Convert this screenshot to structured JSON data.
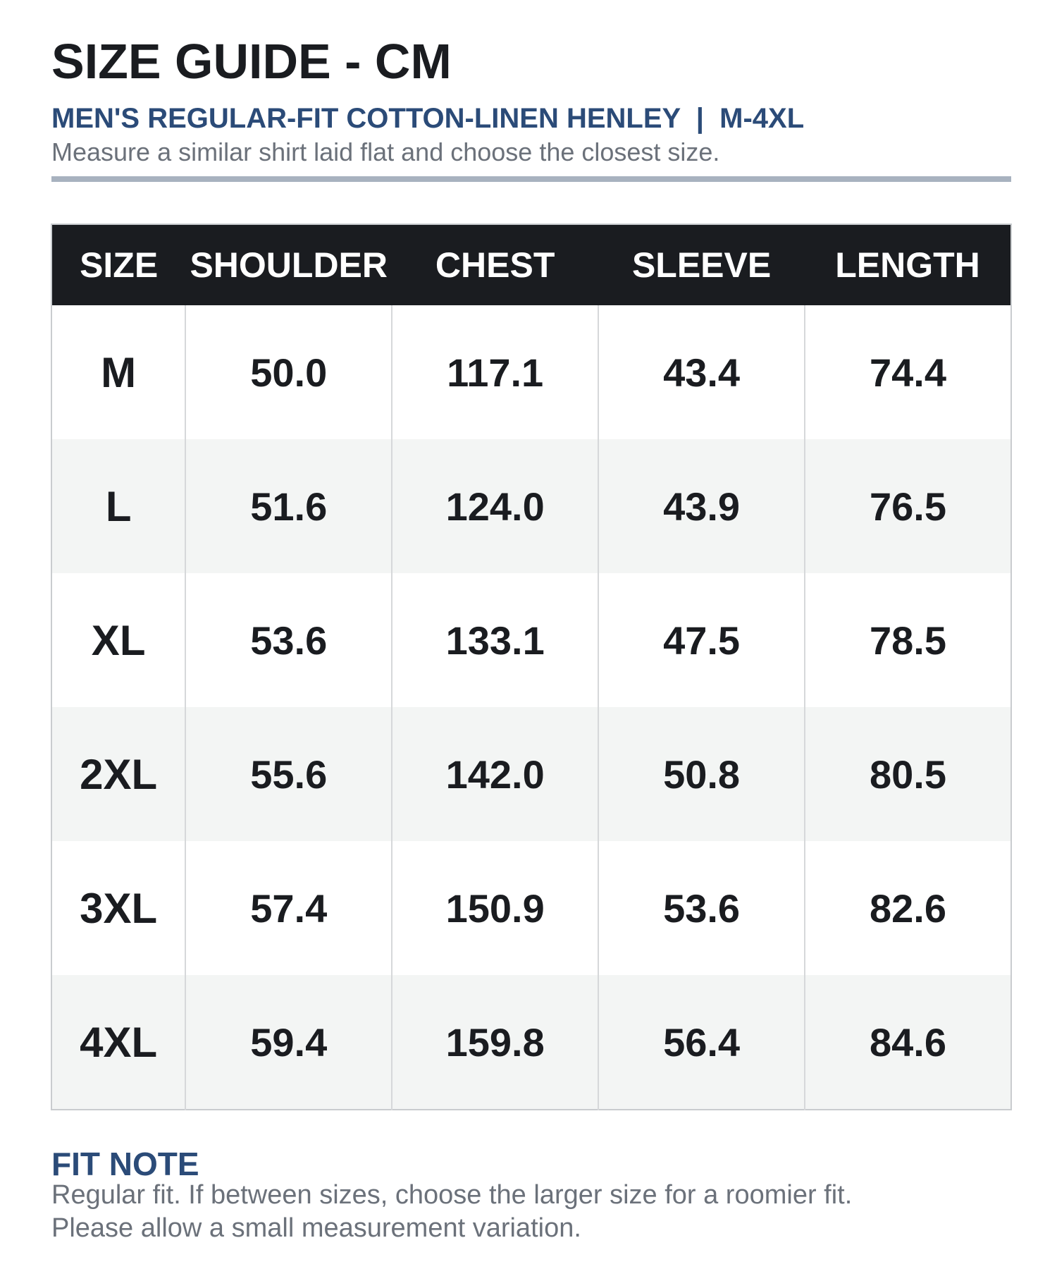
{
  "header": {
    "title": "SIZE GUIDE - CM",
    "subtitle": "MEN'S REGULAR-FIT COTTON-LINEN HENLEY  |  M-4XL",
    "description": "Measure a similar shirt laid flat and choose the closest size."
  },
  "table": {
    "columns": [
      "SIZE",
      "SHOULDER",
      "CHEST",
      "SLEEVE",
      "LENGTH"
    ],
    "rows": [
      [
        "M",
        "50.0",
        "117.1",
        "43.4",
        "74.4"
      ],
      [
        "L",
        "51.6",
        "124.0",
        "43.9",
        "76.5"
      ],
      [
        "XL",
        "53.6",
        "133.1",
        "47.5",
        "78.5"
      ],
      [
        "2XL",
        "55.6",
        "142.0",
        "50.8",
        "80.5"
      ],
      [
        "3XL",
        "57.4",
        "150.9",
        "53.6",
        "82.6"
      ],
      [
        "4XL",
        "59.4",
        "159.8",
        "56.4",
        "84.6"
      ]
    ]
  },
  "fit_note": {
    "heading": "FIT NOTE",
    "lines": [
      "Regular fit. If between sizes, choose the larger size for a roomier fit.",
      "Please allow a small measurement variation."
    ]
  },
  "colors": {
    "header_bg": "#1a1c20",
    "accent": "#2b4b78",
    "muted_text": "#6b717a",
    "rule": "#a8b2bf",
    "alt_row": "#f3f5f4"
  }
}
